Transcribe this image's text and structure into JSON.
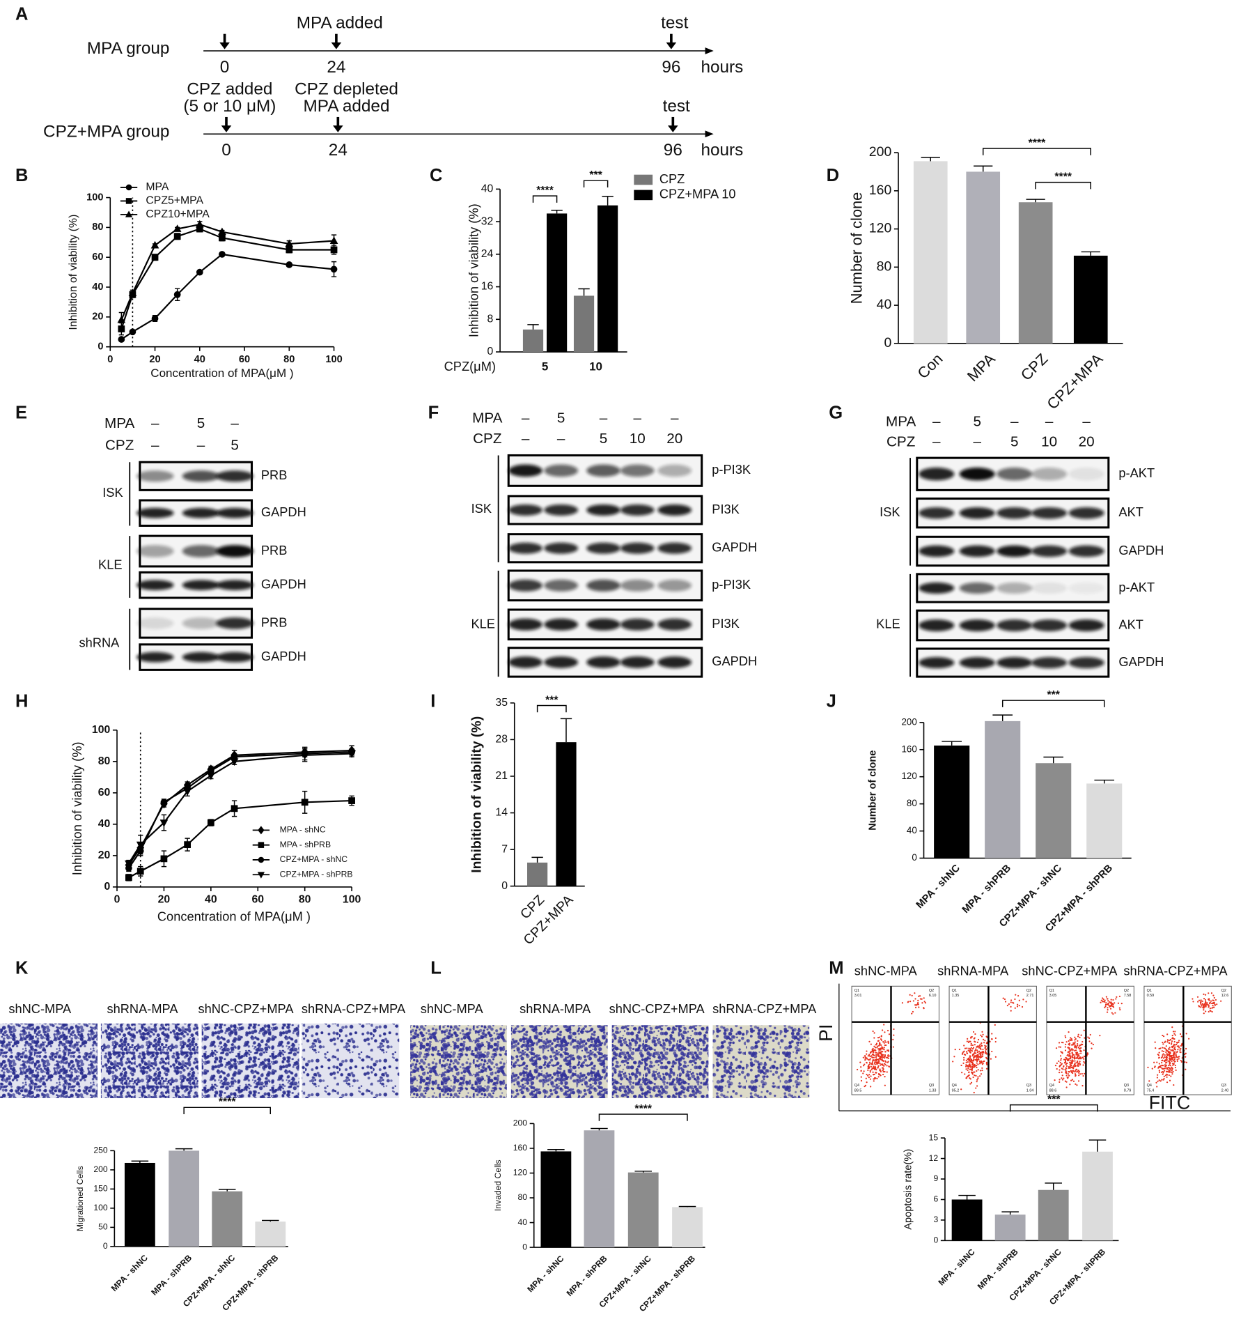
{
  "panel_labels": [
    "A",
    "B",
    "C",
    "D",
    "E",
    "F",
    "G",
    "H",
    "I",
    "J",
    "K",
    "L",
    "M"
  ],
  "timeline": {
    "rows": [
      {
        "group": "MPA group",
        "unit": "hours",
        "events": [
          {
            "time": 0,
            "notes": []
          },
          {
            "time": 24,
            "notes": [
              "MPA added"
            ]
          },
          {
            "time": 96,
            "notes": [
              "test"
            ]
          }
        ]
      },
      {
        "group": "CPZ+MPA group",
        "unit": "hours",
        "events": [
          {
            "time": 0,
            "notes": [
              "CPZ added",
              "(5 or 10 μM)"
            ]
          },
          {
            "time": 24,
            "notes": [
              "CPZ depleted",
              "MPA added"
            ]
          },
          {
            "time": 96,
            "notes": [
              "test"
            ]
          }
        ]
      }
    ]
  },
  "blots": [
    {
      "conditions": [
        {
          "name": "MPA",
          "levels": [
            "–",
            "5",
            "–"
          ]
        },
        {
          "name": "CPZ",
          "levels": [
            "–",
            "–",
            "5"
          ]
        }
      ],
      "groups": [
        {
          "name": "ISK",
          "bands": [
            "PRB",
            "GAPDH"
          ]
        },
        {
          "name": "KLE",
          "bands": [
            "PRB",
            "GAPDH"
          ]
        },
        {
          "name": "shRNA",
          "bands": [
            "PRB",
            "GAPDH"
          ]
        }
      ]
    },
    {
      "conditions": [
        {
          "name": "MPA",
          "levels": [
            "–",
            "5",
            "–",
            "–",
            "–"
          ]
        },
        {
          "name": "CPZ",
          "levels": [
            "–",
            "–",
            "5",
            "10",
            "20"
          ]
        }
      ],
      "groups": [
        {
          "name": "ISK",
          "bands": [
            "p-PI3K",
            "PI3K",
            "GAPDH"
          ]
        },
        {
          "name": "KLE",
          "bands": [
            "p-PI3K",
            "PI3K",
            "GAPDH"
          ]
        }
      ]
    },
    {
      "conditions": [
        {
          "name": "MPA",
          "levels": [
            "–",
            "5",
            "–",
            "–",
            "–"
          ]
        },
        {
          "name": "CPZ",
          "levels": [
            "–",
            "–",
            "5",
            "10",
            "20"
          ]
        }
      ],
      "groups": [
        {
          "name": "ISK",
          "bands": [
            "p-AKT",
            "AKT",
            "GAPDH"
          ]
        },
        {
          "name": "KLE",
          "bands": [
            "p-AKT",
            "AKT",
            "GAPDH"
          ]
        }
      ]
    }
  ],
  "images": {
    "migration": {
      "labels": [
        "shNC-MPA",
        "shRNA-MPA",
        "shNC-CPZ+MPA",
        "shRNA-CPZ+MPA"
      ]
    },
    "invasion": {
      "labels": [
        "shNC-MPA",
        "shRNA-MPA",
        "shNC-CPZ+MPA",
        "shRNA-CPZ+MPA"
      ]
    },
    "flow": {
      "labels": [
        "shNC-MPA",
        "shRNA-MPA",
        "shNC-CPZ+MPA",
        "shRNA-CPZ+MPA"
      ],
      "quadrants": [
        "Q1",
        "Q2",
        "Q4",
        "Q3"
      ],
      "quadrant_values": [
        [
          "3.01",
          "6.10",
          "89.5",
          "1.33"
        ],
        [
          "1.35",
          "2.71",
          "95.2",
          "1.04"
        ],
        [
          "3.05",
          "7.58",
          "88.6",
          "0.79"
        ],
        [
          "0.59",
          "12.6",
          "75.4",
          "2.40"
        ]
      ],
      "y_label": "PI",
      "x_label": "FITC"
    }
  },
  "chart_data": [
    {
      "type": "line",
      "ylabel": "Inhibition of viability (%)",
      "xlabel": "Concentration of MPA(μM )",
      "x": [
        5,
        10,
        20,
        30,
        40,
        50,
        80,
        100
      ],
      "xlim": [
        0,
        100
      ],
      "xticks": [
        0,
        20,
        40,
        60,
        80,
        100
      ],
      "ylim": [
        0,
        100
      ],
      "yticks": [
        0,
        20,
        40,
        60,
        80,
        100
      ],
      "reference_x": 10,
      "series": [
        {
          "name": "MPA",
          "color": "#000000",
          "marker": "circle",
          "values": [
            5,
            10,
            19,
            35,
            50,
            62,
            55,
            52
          ],
          "errors": [
            1,
            1,
            2,
            4,
            1,
            1,
            1,
            5
          ]
        },
        {
          "name": "CPZ5+MPA",
          "color": "#000000",
          "marker": "square",
          "values": [
            12,
            35,
            60,
            74,
            79,
            73,
            65,
            65
          ],
          "errors": [
            4,
            2,
            2,
            2,
            2,
            2,
            2,
            3
          ]
        },
        {
          "name": "CPZ10+MPA",
          "color": "#000000",
          "marker": "triangle",
          "values": [
            18,
            36,
            68,
            79,
            82,
            77,
            69,
            71
          ],
          "errors": [
            5,
            2,
            1,
            1,
            2,
            1,
            2,
            4
          ]
        }
      ]
    },
    {
      "type": "bar",
      "ylabel": "Inhibition of viability (%)",
      "category_axis_label": "CPZ(μM)",
      "categories": [
        "5",
        "10"
      ],
      "ylim": [
        0,
        40
      ],
      "yticks": [
        0,
        8,
        16,
        24,
        32,
        40
      ],
      "series": [
        {
          "name": "CPZ",
          "color": "#777777",
          "values": [
            5.5,
            13.8
          ],
          "errors": [
            1.2,
            1.7
          ]
        },
        {
          "name": "CPZ+MPA 10",
          "color": "#000000",
          "values": [
            34,
            36
          ],
          "errors": [
            0.8,
            2.2
          ]
        }
      ],
      "annotations": [
        {
          "text": "****",
          "category": "5"
        },
        {
          "text": "***",
          "category": "10"
        }
      ]
    },
    {
      "type": "bar",
      "ylabel": "Number of clone",
      "categories": [
        "Con",
        "MPA",
        "CPZ",
        "CPZ+MPA"
      ],
      "values": [
        191,
        180,
        148,
        92
      ],
      "errors": [
        4,
        6,
        3,
        4
      ],
      "colors": [
        "#dcdcdc",
        "#b0b0b8",
        "#8c8c8c",
        "#000000"
      ],
      "ylim": [
        0,
        200
      ],
      "yticks": [
        0,
        40,
        80,
        120,
        160,
        200
      ],
      "annotations": [
        {
          "text": "****",
          "between": [
            "MPA",
            "CPZ+MPA"
          ]
        },
        {
          "text": "****",
          "between": [
            "CPZ",
            "CPZ+MPA"
          ]
        }
      ]
    },
    {
      "type": "line",
      "ylabel": "Inhibition of viability (%)",
      "xlabel": "Concentration of MPA(μM )",
      "x": [
        5,
        10,
        20,
        30,
        40,
        50,
        80,
        100
      ],
      "xlim": [
        0,
        100
      ],
      "xticks": [
        0,
        20,
        40,
        60,
        80,
        100
      ],
      "ylim": [
        0,
        100
      ],
      "yticks": [
        0,
        20,
        40,
        60,
        80,
        100
      ],
      "reference_x": 10,
      "series": [
        {
          "name": "MPA - shNC",
          "color": "#000000",
          "marker": "diamond",
          "values": [
            14,
            25,
            53,
            65,
            75,
            84,
            86,
            87
          ],
          "errors": [
            2,
            2,
            2,
            2,
            2,
            3,
            3,
            3
          ]
        },
        {
          "name": "MPA - shPRB",
          "color": "#000000",
          "marker": "square",
          "values": [
            6,
            10,
            18,
            27,
            41,
            50,
            54,
            55
          ],
          "errors": [
            2,
            3,
            5,
            4,
            2,
            5,
            7,
            3
          ]
        },
        {
          "name": "CPZ+MPA - shNC",
          "color": "#000000",
          "marker": "circle",
          "values": [
            12,
            23,
            54,
            63,
            74,
            83,
            85,
            86
          ],
          "errors": [
            2,
            3,
            2,
            2,
            2,
            2,
            4,
            2
          ]
        },
        {
          "name": "CPZ+MPA - shPRB",
          "color": "#000000",
          "marker": "triangle-down",
          "values": [
            15,
            27,
            41,
            61,
            71,
            80,
            84,
            85
          ],
          "errors": [
            2,
            6,
            5,
            3,
            2,
            2,
            4,
            2
          ]
        }
      ]
    },
    {
      "type": "bar",
      "ylabel": "Inhibition of viability (%)",
      "categories": [
        "CPZ",
        "CPZ+MPA"
      ],
      "values": [
        4.5,
        27.5
      ],
      "errors": [
        1,
        4.5
      ],
      "colors": [
        "#777777",
        "#000000"
      ],
      "ylim": [
        0,
        35
      ],
      "yticks": [
        0,
        7,
        14,
        21,
        28,
        35
      ],
      "annotations": [
        {
          "text": "***",
          "between": [
            "CPZ",
            "CPZ+MPA"
          ]
        }
      ]
    },
    {
      "type": "bar",
      "ylabel": "Number of clone",
      "categories": [
        "MPA - shNC",
        "MPA - shPRB",
        "CPZ+MPA - shNC",
        "CPZ+MPA - shPRB"
      ],
      "values": [
        166,
        202,
        140,
        110
      ],
      "errors": [
        6,
        9,
        9,
        5
      ],
      "colors": [
        "#000000",
        "#a8a8b0",
        "#8c8c8c",
        "#dcdcdc"
      ],
      "ylim": [
        0,
        200
      ],
      "yticks": [
        0,
        40,
        80,
        120,
        160,
        200
      ],
      "annotations": [
        {
          "text": "***",
          "between": [
            "MPA - shPRB",
            "CPZ+MPA - shPRB"
          ]
        }
      ]
    },
    {
      "type": "bar",
      "ylabel": "Migrationed Cells",
      "categories": [
        "MPA - shNC",
        "MPA - shPRB",
        "CPZ+MPA - shNC",
        "CPZ+MPA - shPRB"
      ],
      "values": [
        218,
        250,
        144,
        65
      ],
      "errors": [
        5,
        5,
        5,
        3
      ],
      "colors": [
        "#000000",
        "#a8a8b0",
        "#8c8c8c",
        "#dcdcdc"
      ],
      "ylim": [
        0,
        250
      ],
      "yticks": [
        0,
        50,
        100,
        150,
        200,
        250
      ],
      "annotations": [
        {
          "text": "****",
          "between": [
            "MPA - shPRB",
            "CPZ+MPA - shPRB"
          ]
        }
      ]
    },
    {
      "type": "bar",
      "ylabel": "Invaded Cells",
      "categories": [
        "MPA - shNC",
        "MPA - shPRB",
        "CPZ+MPA - shNC",
        "CPZ+MPA - shPRB"
      ],
      "values": [
        155,
        189,
        121,
        65
      ],
      "errors": [
        3,
        3,
        2,
        1
      ],
      "colors": [
        "#000000",
        "#a8a8b0",
        "#8c8c8c",
        "#dcdcdc"
      ],
      "ylim": [
        0,
        200
      ],
      "yticks": [
        0,
        40,
        80,
        120,
        160,
        200
      ],
      "annotations": [
        {
          "text": "****",
          "between": [
            "MPA - shPRB",
            "CPZ+MPA - shPRB"
          ]
        }
      ]
    },
    {
      "type": "bar",
      "ylabel": "Apoptosis rate(%)",
      "categories": [
        "MPA - shNC",
        "MPA - shPRB",
        "CPZ+MPA - shNC",
        "CPZ+MPA - shPRB"
      ],
      "values": [
        6,
        3.8,
        7.4,
        13
      ],
      "errors": [
        0.6,
        0.4,
        1,
        1.7
      ],
      "colors": [
        "#000000",
        "#a8a8b0",
        "#8c8c8c",
        "#dcdcdc"
      ],
      "ylim": [
        0,
        15
      ],
      "yticks": [
        0,
        3,
        6,
        9,
        12,
        15
      ],
      "annotations": [
        {
          "text": "***",
          "between": [
            "MPA - shPRB",
            "CPZ+MPA - shPRB"
          ]
        }
      ]
    }
  ]
}
